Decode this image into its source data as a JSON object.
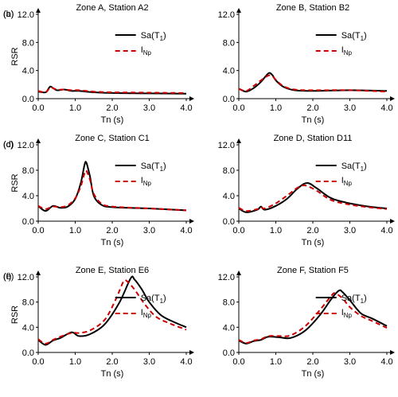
{
  "chart_data": [
    {
      "type": "line",
      "panel": "(a)",
      "title": "Zone A, Station A2",
      "xlabel": "",
      "ylabel": "RSR",
      "xlim": [
        0,
        4
      ],
      "ylim": [
        0,
        12
      ],
      "xticks": [
        "0.0",
        "1.0",
        "2.0",
        "3.0",
        "4.0"
      ],
      "yticks": [
        "0.0",
        "4.0",
        "8.0",
        "12.0"
      ],
      "legend": {
        "sa": "Sa(T",
        "sa_sub": "1",
        "sa_close": ")",
        "inp": "I",
        "inp_sub": "Np"
      },
      "series": [
        {
          "name": "Sa(T1)",
          "color": "#000000",
          "style": "solid",
          "points": [
            [
              0,
              1.0
            ],
            [
              0.2,
              0.9
            ],
            [
              0.3,
              1.6
            ],
            [
              0.35,
              1.7
            ],
            [
              0.5,
              1.2
            ],
            [
              0.7,
              1.3
            ],
            [
              0.9,
              1.1
            ],
            [
              1.1,
              1.1
            ],
            [
              1.5,
              0.9
            ],
            [
              2.0,
              0.8
            ],
            [
              3.0,
              0.75
            ],
            [
              4.0,
              0.7
            ]
          ]
        },
        {
          "name": "INp",
          "color": "#cc0000",
          "style": "dashed",
          "points": [
            [
              0,
              1.1
            ],
            [
              0.2,
              0.9
            ],
            [
              0.3,
              1.5
            ],
            [
              0.35,
              1.6
            ],
            [
              0.5,
              1.3
            ],
            [
              0.7,
              1.3
            ],
            [
              0.9,
              1.2
            ],
            [
              1.1,
              1.2
            ],
            [
              1.5,
              1.0
            ],
            [
              2.0,
              0.9
            ],
            [
              3.0,
              0.85
            ],
            [
              4.0,
              0.8
            ]
          ]
        }
      ]
    },
    {
      "type": "line",
      "panel": "(b)",
      "title": "Zone B, Station B2",
      "xlabel": "",
      "ylabel": "",
      "xlim": [
        0,
        4
      ],
      "ylim": [
        0,
        12
      ],
      "xticks": [
        "0.0",
        "1.0",
        "2.0",
        "3.0",
        "4.0"
      ],
      "yticks": [
        "0.0",
        "4.0",
        "8.0",
        "12.0"
      ],
      "legend": {
        "sa": "Sa(T",
        "sa_sub": "1",
        "sa_close": ")",
        "inp": "I",
        "inp_sub": "Np"
      },
      "series": [
        {
          "name": "Sa(T1)",
          "color": "#000000",
          "style": "solid",
          "points": [
            [
              0,
              1.4
            ],
            [
              0.2,
              1.0
            ],
            [
              0.4,
              1.5
            ],
            [
              0.6,
              2.4
            ],
            [
              0.8,
              3.6
            ],
            [
              0.9,
              3.4
            ],
            [
              1.0,
              2.6
            ],
            [
              1.2,
              1.7
            ],
            [
              1.5,
              1.2
            ],
            [
              2.0,
              1.1
            ],
            [
              3.0,
              1.2
            ],
            [
              4.0,
              1.1
            ]
          ]
        },
        {
          "name": "INp",
          "color": "#cc0000",
          "style": "dashed",
          "points": [
            [
              0,
              1.4
            ],
            [
              0.2,
              1.1
            ],
            [
              0.4,
              1.8
            ],
            [
              0.6,
              2.6
            ],
            [
              0.8,
              3.3
            ],
            [
              0.9,
              3.2
            ],
            [
              1.0,
              2.7
            ],
            [
              1.2,
              1.8
            ],
            [
              1.5,
              1.3
            ],
            [
              2.0,
              1.2
            ],
            [
              3.0,
              1.2
            ],
            [
              4.0,
              1.0
            ]
          ]
        }
      ]
    },
    {
      "type": "line",
      "panel": "(c)",
      "title": "Zone C, Station C1",
      "xlabel": "",
      "ylabel": "RSR",
      "xlim": [
        0,
        4
      ],
      "ylim": [
        0,
        12
      ],
      "xticks": [
        "0.0",
        "1.0",
        "2.0",
        "3.0",
        "4.0"
      ],
      "yticks": [
        "0.0",
        "4.0",
        "8.0",
        "12.0"
      ],
      "legend": {
        "sa": "Sa(T",
        "sa_sub": "1",
        "sa_close": ")",
        "inp": "I",
        "inp_sub": "Np"
      },
      "series": [
        {
          "name": "Sa(T1)",
          "color": "#000000",
          "style": "solid",
          "points": [
            [
              0,
              2.4
            ],
            [
              0.2,
              1.6
            ],
            [
              0.4,
              2.4
            ],
            [
              0.6,
              2.1
            ],
            [
              0.8,
              2.3
            ],
            [
              1.0,
              3.5
            ],
            [
              1.15,
              6.0
            ],
            [
              1.25,
              8.8
            ],
            [
              1.3,
              9.2
            ],
            [
              1.4,
              7.0
            ],
            [
              1.5,
              4.0
            ],
            [
              1.7,
              2.6
            ],
            [
              2.0,
              2.2
            ],
            [
              3.0,
              2.0
            ],
            [
              4.0,
              1.7
            ]
          ]
        },
        {
          "name": "INp",
          "color": "#cc0000",
          "style": "dashed",
          "points": [
            [
              0,
              2.4
            ],
            [
              0.2,
              1.9
            ],
            [
              0.4,
              2.3
            ],
            [
              0.6,
              2.2
            ],
            [
              0.8,
              2.5
            ],
            [
              1.0,
              3.6
            ],
            [
              1.15,
              5.5
            ],
            [
              1.25,
              7.5
            ],
            [
              1.3,
              7.9
            ],
            [
              1.4,
              6.5
            ],
            [
              1.5,
              4.3
            ],
            [
              1.7,
              2.8
            ],
            [
              2.0,
              2.3
            ],
            [
              3.0,
              2.0
            ],
            [
              4.0,
              1.7
            ]
          ]
        }
      ]
    },
    {
      "type": "line",
      "panel": "(d)",
      "title": "Zone D, Station D11",
      "xlabel": "",
      "ylabel": "",
      "xlim": [
        0,
        4
      ],
      "ylim": [
        0,
        12
      ],
      "xticks": [
        "0.0",
        "1.0",
        "2.0",
        "3.0",
        "4.0"
      ],
      "yticks": [
        "0.0",
        "4.0",
        "8.0",
        "12.0"
      ],
      "legend": {
        "sa": "Sa(T",
        "sa_sub": "1",
        "sa_close": ")",
        "inp": "I",
        "inp_sub": "Np"
      },
      "series": [
        {
          "name": "Sa(T1)",
          "color": "#000000",
          "style": "solid",
          "points": [
            [
              0,
              2.0
            ],
            [
              0.2,
              1.4
            ],
            [
              0.5,
              1.8
            ],
            [
              0.6,
              2.3
            ],
            [
              0.7,
              1.8
            ],
            [
              1.0,
              2.4
            ],
            [
              1.3,
              3.5
            ],
            [
              1.6,
              5.2
            ],
            [
              1.85,
              6.0
            ],
            [
              2.1,
              5.2
            ],
            [
              2.5,
              3.6
            ],
            [
              3.0,
              2.8
            ],
            [
              3.5,
              2.3
            ],
            [
              4.0,
              2.0
            ]
          ]
        },
        {
          "name": "INp",
          "color": "#cc0000",
          "style": "dashed",
          "points": [
            [
              0,
              2.1
            ],
            [
              0.2,
              1.6
            ],
            [
              0.5,
              1.9
            ],
            [
              0.6,
              2.2
            ],
            [
              0.7,
              2.0
            ],
            [
              1.0,
              2.8
            ],
            [
              1.3,
              4.0
            ],
            [
              1.6,
              5.3
            ],
            [
              1.8,
              5.6
            ],
            [
              2.1,
              4.8
            ],
            [
              2.5,
              3.3
            ],
            [
              3.0,
              2.6
            ],
            [
              3.5,
              2.2
            ],
            [
              4.0,
              1.9
            ]
          ]
        }
      ]
    },
    {
      "type": "line",
      "panel": "(e)",
      "title": "Zone E, Station E6",
      "xlabel": "Tn (s)",
      "ylabel": "RSR",
      "xlim": [
        0,
        4
      ],
      "ylim": [
        0,
        12
      ],
      "xticks": [
        "0.0",
        "1.0",
        "2.0",
        "3.0",
        "4.0"
      ],
      "yticks": [
        "0.0",
        "4.0",
        "8.0",
        "12.0"
      ],
      "legend": {
        "sa": "Sa(T",
        "sa_sub": "1",
        "sa_close": ")",
        "inp": "I",
        "inp_sub": "Np"
      },
      "series": [
        {
          "name": "Sa(T1)",
          "color": "#000000",
          "style": "solid",
          "points": [
            [
              0,
              2.0
            ],
            [
              0.2,
              1.2
            ],
            [
              0.4,
              1.9
            ],
            [
              0.6,
              2.3
            ],
            [
              0.9,
              3.2
            ],
            [
              1.1,
              2.6
            ],
            [
              1.4,
              2.9
            ],
            [
              1.8,
              4.5
            ],
            [
              2.2,
              8.0
            ],
            [
              2.5,
              11.8
            ],
            [
              2.6,
              11.6
            ],
            [
              2.8,
              10.0
            ],
            [
              3.0,
              8.0
            ],
            [
              3.3,
              6.0
            ],
            [
              3.6,
              5.0
            ],
            [
              4.0,
              4.0
            ]
          ]
        },
        {
          "name": "INp",
          "color": "#cc0000",
          "style": "dashed",
          "points": [
            [
              0,
              2.1
            ],
            [
              0.2,
              1.4
            ],
            [
              0.4,
              2.0
            ],
            [
              0.6,
              2.5
            ],
            [
              0.9,
              3.1
            ],
            [
              1.1,
              3.1
            ],
            [
              1.4,
              3.5
            ],
            [
              1.8,
              5.2
            ],
            [
              2.1,
              8.5
            ],
            [
              2.3,
              11.2
            ],
            [
              2.4,
              11.3
            ],
            [
              2.6,
              10.0
            ],
            [
              2.9,
              7.5
            ],
            [
              3.2,
              5.6
            ],
            [
              3.6,
              4.5
            ],
            [
              4.0,
              3.6
            ]
          ]
        }
      ]
    },
    {
      "type": "line",
      "panel": "(f)",
      "title": "Zone F, Station F5",
      "xlabel": "Tn (s)",
      "ylabel": "",
      "xlim": [
        0,
        4
      ],
      "ylim": [
        0,
        12
      ],
      "xticks": [
        "0.0",
        "1.0",
        "2.0",
        "3.0",
        "4.0"
      ],
      "yticks": [
        "0.0",
        "4.0",
        "8.0",
        "12.0"
      ],
      "legend": {
        "sa": "Sa(T",
        "sa_sub": "1",
        "sa_close": ")",
        "inp": "I",
        "inp_sub": "Np"
      },
      "series": [
        {
          "name": "Sa(T1)",
          "color": "#000000",
          "style": "solid",
          "points": [
            [
              0,
              1.9
            ],
            [
              0.2,
              1.4
            ],
            [
              0.4,
              1.8
            ],
            [
              0.6,
              2.0
            ],
            [
              0.8,
              2.5
            ],
            [
              1.1,
              2.4
            ],
            [
              1.4,
              2.3
            ],
            [
              1.8,
              3.5
            ],
            [
              2.2,
              6.0
            ],
            [
              2.5,
              8.5
            ],
            [
              2.7,
              9.8
            ],
            [
              2.8,
              9.6
            ],
            [
              3.0,
              8.3
            ],
            [
              3.3,
              6.2
            ],
            [
              3.6,
              5.4
            ],
            [
              4.0,
              4.2
            ]
          ]
        },
        {
          "name": "INp",
          "color": "#cc0000",
          "style": "dashed",
          "points": [
            [
              0,
              2.0
            ],
            [
              0.2,
              1.5
            ],
            [
              0.4,
              1.9
            ],
            [
              0.6,
              2.1
            ],
            [
              0.8,
              2.6
            ],
            [
              1.1,
              2.6
            ],
            [
              1.4,
              2.7
            ],
            [
              1.8,
              4.2
            ],
            [
              2.2,
              6.8
            ],
            [
              2.5,
              9.0
            ],
            [
              2.6,
              9.4
            ],
            [
              2.8,
              8.6
            ],
            [
              3.0,
              7.2
            ],
            [
              3.3,
              5.8
            ],
            [
              3.6,
              5.0
            ],
            [
              4.0,
              3.9
            ]
          ]
        }
      ]
    }
  ]
}
